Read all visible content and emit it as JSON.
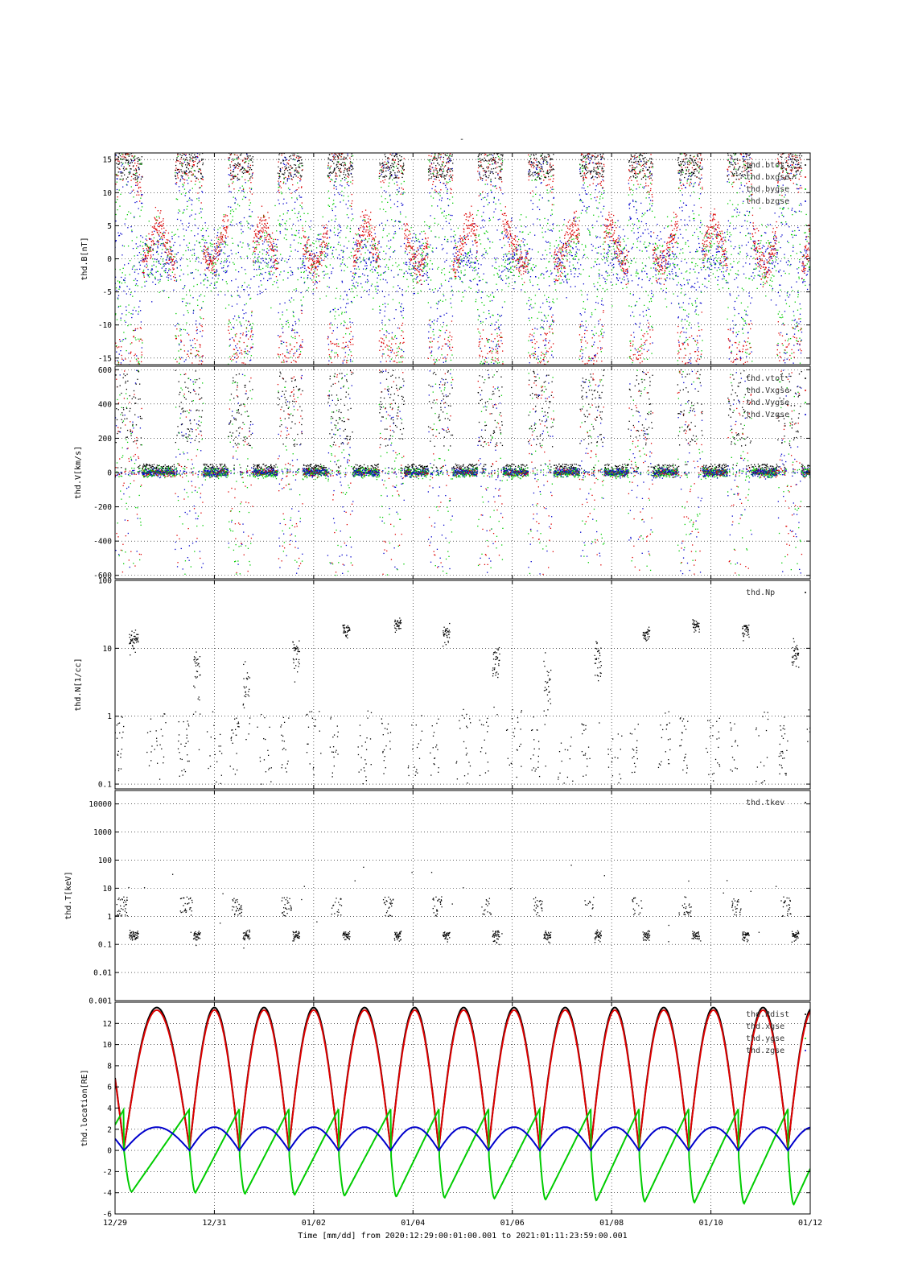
{
  "figure": {
    "title": "-",
    "time_axis_label": "Time [mm/dd]  from 2020:12:29:00:01:00.001  to  2021:01:11:23:59:00.001",
    "time_ticks": [
      "12/29",
      "12/31",
      "01/02",
      "01/04",
      "01/06",
      "01/08",
      "01/10",
      "01/12"
    ],
    "time_tick_days": [
      0,
      2,
      4,
      6,
      8,
      10,
      12,
      14
    ],
    "xlim_days": [
      0,
      14
    ]
  },
  "colors": {
    "black": "#000000",
    "red": "#dd0000",
    "green": "#00cc00",
    "blue": "#0000cc"
  },
  "chart_data": [
    {
      "type": "scatter",
      "ylabel": "thd.B[nT]",
      "ylim": [
        -16,
        16
      ],
      "yscale": "linear",
      "yticks": [
        -15,
        -10,
        -5,
        0,
        5,
        10,
        15
      ],
      "ytick_labels": [
        "-15",
        "-10",
        "-5",
        "0",
        "5",
        "10",
        "15"
      ],
      "grid": true,
      "legend_placement": "top-right",
      "series": [
        {
          "name": "thd.btot",
          "color": "#000000"
        },
        {
          "name": "thd.bxgse",
          "color": "#dd0000"
        },
        {
          "name": "thd.bygse",
          "color": "#00cc00"
        },
        {
          "name": "thd.bzgse",
          "color": "#0000cc"
        }
      ]
    },
    {
      "type": "scatter",
      "ylabel": "thd.V[km/s]",
      "ylim": [
        -620,
        620
      ],
      "yscale": "linear",
      "yticks": [
        -600,
        -400,
        -200,
        0,
        200,
        400,
        600
      ],
      "ytick_labels": [
        "-600",
        "-400",
        "-200",
        "0",
        "200",
        "400",
        "600"
      ],
      "grid": true,
      "legend_placement": "top-right",
      "series": [
        {
          "name": "thd.vtot",
          "color": "#000000"
        },
        {
          "name": "thd.Vxgse",
          "color": "#dd0000"
        },
        {
          "name": "thd.Vygse",
          "color": "#00cc00"
        },
        {
          "name": "thd.Vzgse",
          "color": "#0000cc"
        }
      ]
    },
    {
      "type": "scatter",
      "ylabel": "thd.N[1/cc]",
      "ylim": [
        0.085,
        100
      ],
      "yscale": "log",
      "yticks": [
        0.1,
        1,
        10,
        100
      ],
      "ytick_labels": [
        "0.1",
        "1",
        "10",
        "100"
      ],
      "grid": true,
      "legend_placement": "top-right",
      "series": [
        {
          "name": "thd.Np",
          "color": "#000000"
        }
      ]
    },
    {
      "type": "scatter",
      "ylabel": "thd.T[keV]",
      "ylim": [
        0.001,
        30000
      ],
      "yscale": "log",
      "yticks": [
        0.001,
        0.01,
        0.1,
        1,
        10,
        100,
        1000,
        10000
      ],
      "ytick_labels": [
        "0.001",
        "0.01",
        "0.1",
        "1",
        "10",
        "100",
        "1000",
        "10000"
      ],
      "grid": true,
      "legend_placement": "top-right",
      "series": [
        {
          "name": "thd.tkev",
          "color": "#000000"
        }
      ]
    },
    {
      "type": "line",
      "ylabel": "thd.location[RE]",
      "ylim": [
        -6,
        14
      ],
      "yscale": "linear",
      "yticks": [
        -6,
        -4,
        -2,
        0,
        2,
        4,
        6,
        8,
        10,
        12
      ],
      "ytick_labels": [
        "-6",
        "-4",
        "-2",
        "0",
        "2",
        "4",
        "6",
        "8",
        "10",
        "12"
      ],
      "grid": true,
      "legend_placement": "top-right",
      "series": [
        {
          "name": "thd.Rdist",
          "color": "#000000"
        },
        {
          "name": "thd.xgse",
          "color": "#dd0000"
        },
        {
          "name": "thd.ygse",
          "color": "#00cc00"
        },
        {
          "name": "thd.zgse",
          "color": "#0000cc"
        }
      ],
      "orbit": {
        "apogee_RE": 13.3,
        "perigee_days": [
          0.18,
          1.5,
          2.5,
          3.5,
          4.5,
          5.55,
          6.52,
          7.52,
          8.55,
          9.58,
          10.55,
          11.55,
          12.55,
          13.55
        ],
        "ygse_max": 3.9,
        "ygse_min": -4.5,
        "zgse_max": 2.2
      }
    }
  ]
}
